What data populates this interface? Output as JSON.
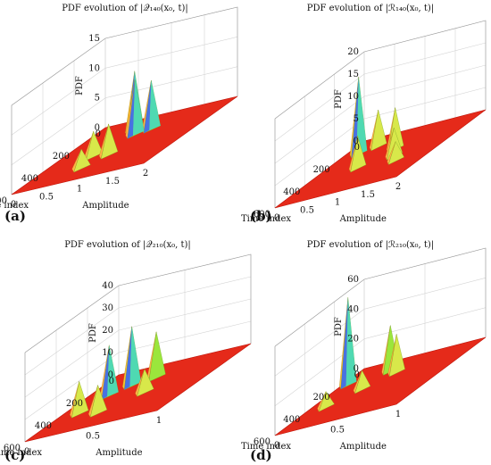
{
  "panels": [
    {
      "label": "(a)",
      "title": "PDF evolution of |𝒬₁₄₀(x₀, t)|",
      "zlabel": "PDF",
      "xlabel": "Amplitude",
      "ylabel": "Time index",
      "xticks": [
        "0",
        "0.5",
        "1",
        "1.5",
        "2"
      ],
      "yticks": [
        "0",
        "200",
        "400",
        "600"
      ],
      "zticks": [
        "0",
        "5",
        "10",
        "15"
      ]
    },
    {
      "label": "(b)",
      "title": "PDF evolution of |ℛ₁₄₀(x₀, t)|",
      "zlabel": "PDF",
      "xlabel": "Amplitude",
      "ylabel": "Time index",
      "xticks": [
        "0",
        "0.5",
        "1",
        "1.5",
        "2"
      ],
      "yticks": [
        "0",
        "200",
        "400",
        "600"
      ],
      "zticks": [
        "0",
        "5",
        "10",
        "15",
        "20"
      ]
    },
    {
      "label": "(c)",
      "title": "PDF evolution of |𝒬₂₁₀(x₀, t)|",
      "zlabel": "PDF",
      "xlabel": "Amplitude",
      "ylabel": "Time index",
      "xticks": [
        "0",
        "0.5",
        "1"
      ],
      "yticks": [
        "0",
        "200",
        "400",
        "600"
      ],
      "zticks": [
        "0",
        "10",
        "20",
        "30",
        "40"
      ]
    },
    {
      "label": "(d)",
      "title": "PDF evolution of |ℛ₂₁₀(x₀, t)|",
      "zlabel": "PDF",
      "xlabel": "Amplitude",
      "ylabel": "Time index",
      "xticks": [
        "0",
        "0.5",
        "1"
      ],
      "yticks": [
        "0",
        "200",
        "400",
        "600"
      ],
      "zticks": [
        "0",
        "20",
        "40",
        "60"
      ]
    }
  ],
  "chart_data": [
    {
      "type": "surface",
      "title": "PDF evolution of |𝒬₁₄₀(x₀, t)|",
      "xlabel": "Amplitude",
      "ylabel": "Time index",
      "zlabel": "PDF",
      "xlim": [
        0,
        2
      ],
      "ylim": [
        0,
        600
      ],
      "zlim": [
        0,
        15
      ],
      "peaks": [
        {
          "amplitude": 0.75,
          "time_index": 130,
          "pdf": 10
        },
        {
          "amplitude": 0.85,
          "time_index": 170,
          "pdf": 9
        },
        {
          "amplitude": 1.05,
          "time_index": 150,
          "pdf": 8
        },
        {
          "amplitude": 0.6,
          "time_index": 330,
          "pdf": 4
        },
        {
          "amplitude": 0.9,
          "time_index": 360,
          "pdf": 5
        },
        {
          "amplitude": 0.7,
          "time_index": 450,
          "pdf": 3
        }
      ]
    },
    {
      "type": "surface",
      "title": "PDF evolution of |ℛ₁₄₀(x₀, t)|",
      "xlabel": "Amplitude",
      "ylabel": "Time index",
      "zlabel": "PDF",
      "xlim": [
        0,
        2
      ],
      "ylim": [
        0,
        600
      ],
      "zlim": [
        0,
        20
      ],
      "peaks": [
        {
          "amplitude": 0.25,
          "time_index": 140,
          "pdf": 17
        },
        {
          "amplitude": 0.5,
          "time_index": 110,
          "pdf": 8
        },
        {
          "amplitude": 1.0,
          "time_index": 200,
          "pdf": 9
        },
        {
          "amplitude": 0.7,
          "time_index": 330,
          "pdf": 7
        },
        {
          "amplitude": 1.2,
          "time_index": 290,
          "pdf": 6
        },
        {
          "amplitude": 1.4,
          "time_index": 360,
          "pdf": 4
        }
      ]
    },
    {
      "type": "surface",
      "title": "PDF evolution of |𝒬₂₁₀(x₀, t)|",
      "xlabel": "Amplitude",
      "ylabel": "Time index",
      "zlabel": "PDF",
      "xlim": [
        0,
        1
      ],
      "ylim": [
        0,
        600
      ],
      "zlim": [
        0,
        40
      ],
      "peaks": [
        {
          "amplitude": 0.2,
          "time_index": 230,
          "pdf": 22
        },
        {
          "amplitude": 0.3,
          "time_index": 170,
          "pdf": 26
        },
        {
          "amplitude": 0.45,
          "time_index": 140,
          "pdf": 20
        },
        {
          "amplitude": 0.15,
          "time_index": 380,
          "pdf": 14
        },
        {
          "amplitude": 0.35,
          "time_index": 430,
          "pdf": 12
        },
        {
          "amplitude": 0.55,
          "time_index": 300,
          "pdf": 10
        }
      ]
    },
    {
      "type": "surface",
      "title": "PDF evolution of |ℛ₂₁₀(x₀, t)|",
      "xlabel": "Amplitude",
      "ylabel": "Time index",
      "zlabel": "PDF",
      "xlim": [
        0,
        1
      ],
      "ylim": [
        0,
        600
      ],
      "zlim": [
        0,
        60
      ],
      "peaks": [
        {
          "amplitude": 0.05,
          "time_index": 150,
          "pdf": 58
        },
        {
          "amplitude": 0.35,
          "time_index": 110,
          "pdf": 30
        },
        {
          "amplitude": 0.45,
          "time_index": 150,
          "pdf": 25
        },
        {
          "amplitude": 0.15,
          "time_index": 380,
          "pdf": 10
        },
        {
          "amplitude": 0.3,
          "time_index": 260,
          "pdf": 12
        }
      ]
    }
  ]
}
